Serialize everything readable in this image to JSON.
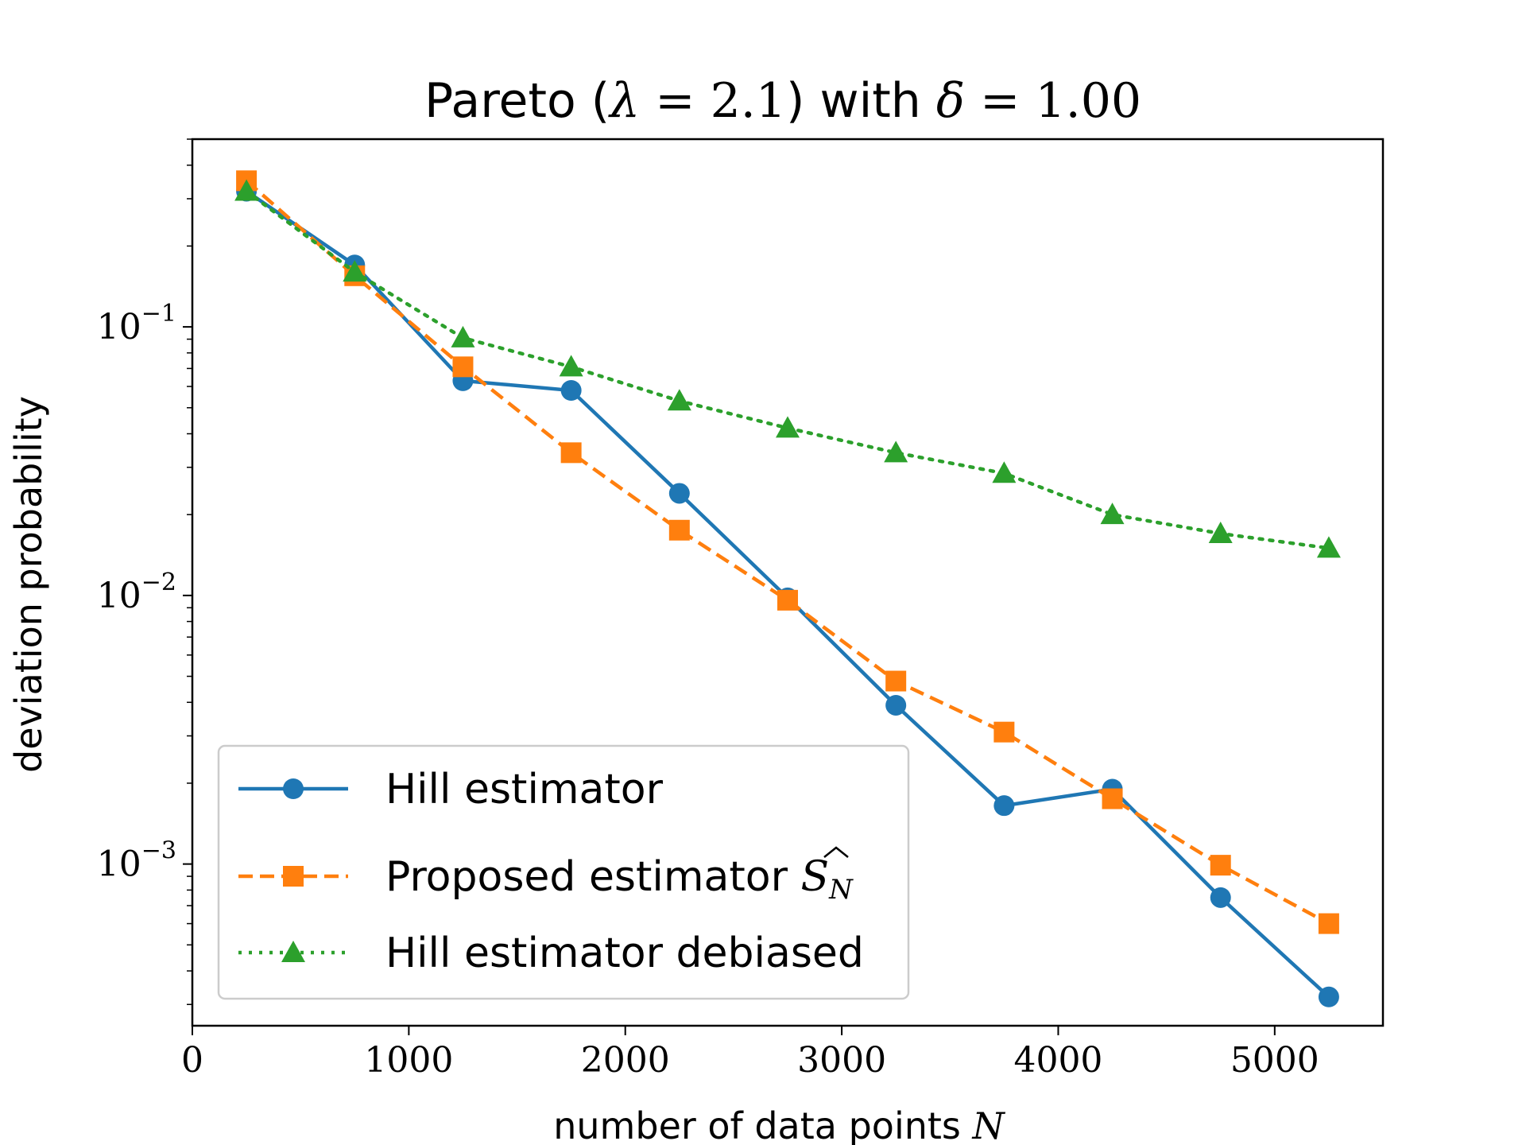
{
  "chart_data": {
    "type": "line",
    "title": {
      "prefix": "Pareto (",
      "lambda_sym": "λ",
      "lambda_val": " = 2.1",
      "mid": ") with ",
      "delta_sym": "δ",
      "delta_val": " = 1.00"
    },
    "xlabel": {
      "text": "number of data points ",
      "math": "N"
    },
    "ylabel": "deviation probability",
    "xlim": [
      0,
      5500
    ],
    "ylim": [
      0.00025,
      0.5
    ],
    "yscale": "log",
    "xticks": [
      0,
      1000,
      2000,
      3000,
      4000,
      5000
    ],
    "yticks": [
      {
        "value": 0.1,
        "base": "10",
        "exp": "−1"
      },
      {
        "value": 0.01,
        "base": "10",
        "exp": "−2"
      },
      {
        "value": 0.001,
        "base": "10",
        "exp": "−3"
      }
    ],
    "x": [
      250,
      750,
      1250,
      1750,
      2250,
      2750,
      3250,
      3750,
      4250,
      4750,
      5250
    ],
    "series": [
      {
        "name": "Hill estimator",
        "color": "#1f77b4",
        "marker": "circle",
        "linestyle": "solid",
        "values": [
          0.32,
          0.17,
          0.063,
          0.058,
          0.024,
          0.0098,
          0.0039,
          0.00165,
          0.0019,
          0.00075,
          0.00032
        ]
      },
      {
        "name": "Proposed estimator ",
        "math_hat": "S",
        "math_sub": "N",
        "color": "#ff7f0e",
        "marker": "square",
        "linestyle": "dashed",
        "values": [
          0.35,
          0.155,
          0.071,
          0.034,
          0.0175,
          0.0096,
          0.0048,
          0.0031,
          0.00175,
          0.00099,
          0.0006
        ]
      },
      {
        "name": "Hill estimator debiased",
        "color": "#2ca02c",
        "marker": "triangle",
        "linestyle": "dotted",
        "values": [
          0.32,
          0.16,
          0.091,
          0.071,
          0.053,
          0.042,
          0.034,
          0.0285,
          0.02,
          0.017,
          0.015
        ]
      }
    ],
    "legend": "lower-left",
    "grid": false
  }
}
